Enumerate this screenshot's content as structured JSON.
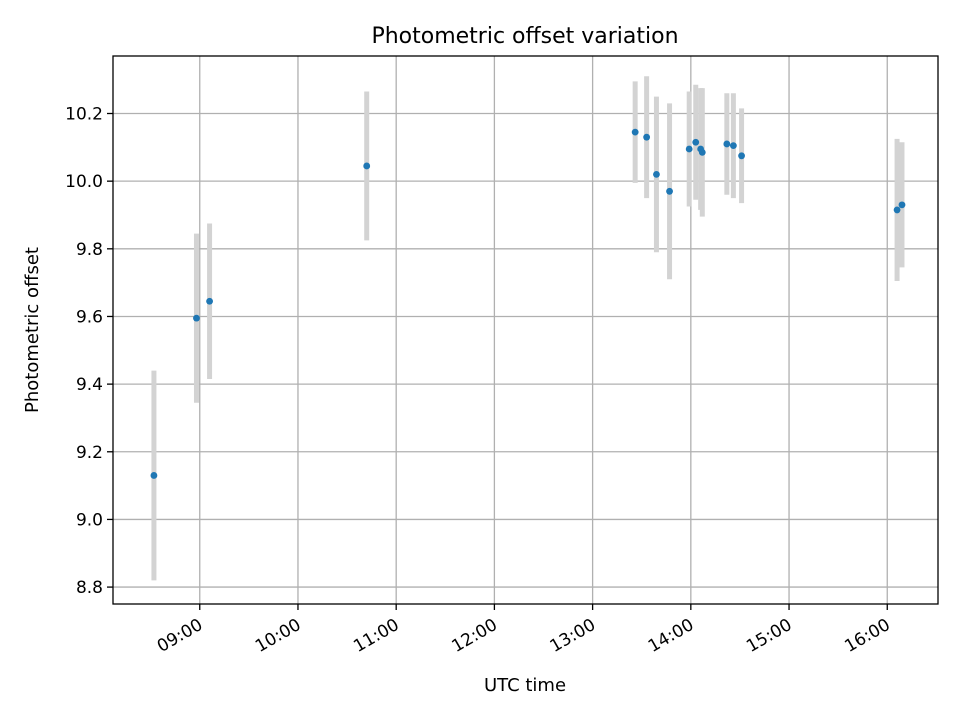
{
  "chart_data": {
    "type": "scatter",
    "title": "Photometric offset variation",
    "xlabel": "UTC time",
    "ylabel": "Photometric offset",
    "xlim": [
      "08:07",
      "16:31"
    ],
    "ylim": [
      8.75,
      10.37
    ],
    "x_ticks": [
      "09:00",
      "10:00",
      "11:00",
      "12:00",
      "13:00",
      "14:00",
      "15:00",
      "16:00"
    ],
    "y_ticks": [
      "8.8",
      "9.0",
      "9.2",
      "9.4",
      "9.6",
      "9.8",
      "10.0",
      "10.2"
    ],
    "grid": true,
    "colors": {
      "point": "#1f77b4",
      "errorbar": "#d3d3d3",
      "grid": "#b0b0b0"
    },
    "points": [
      {
        "x": "08:32",
        "y": 9.13,
        "err": 0.31
      },
      {
        "x": "08:58",
        "y": 9.595,
        "err": 0.25
      },
      {
        "x": "09:06",
        "y": 9.645,
        "err": 0.23
      },
      {
        "x": "10:42",
        "y": 10.045,
        "err": 0.22
      },
      {
        "x": "13:26",
        "y": 10.145,
        "err": 0.15
      },
      {
        "x": "13:33",
        "y": 10.13,
        "err": 0.18
      },
      {
        "x": "13:39",
        "y": 10.02,
        "err": 0.23
      },
      {
        "x": "13:47",
        "y": 9.97,
        "err": 0.26
      },
      {
        "x": "13:59",
        "y": 10.095,
        "err": 0.17
      },
      {
        "x": "14:03",
        "y": 10.115,
        "err": 0.17
      },
      {
        "x": "14:06",
        "y": 10.095,
        "err": 0.18
      },
      {
        "x": "14:07",
        "y": 10.085,
        "err": 0.19
      },
      {
        "x": "14:22",
        "y": 10.11,
        "err": 0.15
      },
      {
        "x": "14:26",
        "y": 10.105,
        "err": 0.155
      },
      {
        "x": "14:31",
        "y": 10.075,
        "err": 0.14
      },
      {
        "x": "16:06",
        "y": 9.915,
        "err": 0.21
      },
      {
        "x": "16:09",
        "y": 9.93,
        "err": 0.185
      }
    ]
  }
}
